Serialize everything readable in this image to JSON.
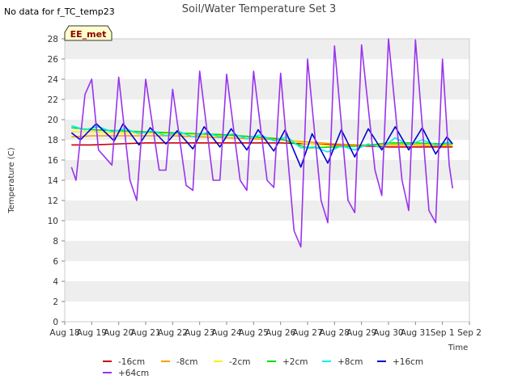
{
  "header": {
    "no_data_text": "No data for f_TC_temp23",
    "badge_text": "EE_met"
  },
  "colors": {
    "band": "#eeeeee",
    "badge_fill": "#ffffcc",
    "badge_text": "#8b0000"
  },
  "chart_data": {
    "type": "line",
    "title": "Soil/Water Temperature Set 3",
    "xlabel": "Time",
    "ylabel": "Temperature (C)",
    "ylim": [
      0,
      28
    ],
    "y_ticks": [
      0,
      2,
      4,
      6,
      8,
      10,
      12,
      14,
      16,
      18,
      20,
      22,
      24,
      26,
      28
    ],
    "x_ticks": [
      "Aug 18",
      "Aug 19",
      "Aug 20",
      "Aug 21",
      "Aug 22",
      "Aug 23",
      "Aug 24",
      "Aug 25",
      "Aug 26",
      "Aug 27",
      "Aug 28",
      "Aug 29",
      "Aug 30",
      "Aug 31",
      "Sep 1",
      "Sep 2"
    ],
    "xlim": [
      "Aug 18",
      "Sep 2"
    ],
    "grid": "horizontal bands",
    "legend_position": "bottom",
    "series": [
      {
        "name": "-16cm",
        "color": "#cc0000",
        "points": [
          [
            "Aug 18 06:00",
            17.5
          ],
          [
            "Aug 19 00:00",
            17.5
          ],
          [
            "Aug 20 00:00",
            17.6
          ],
          [
            "Aug 21 00:00",
            17.7
          ],
          [
            "Aug 22 00:00",
            17.7
          ],
          [
            "Aug 23 00:00",
            17.7
          ],
          [
            "Aug 24 00:00",
            17.7
          ],
          [
            "Aug 25 00:00",
            17.7
          ],
          [
            "Aug 26 00:00",
            17.7
          ],
          [
            "Aug 27 00:00",
            17.6
          ],
          [
            "Aug 28 00:00",
            17.5
          ],
          [
            "Aug 29 00:00",
            17.4
          ],
          [
            "Aug 30 00:00",
            17.3
          ],
          [
            "Aug 31 00:00",
            17.3
          ],
          [
            "Sep 1 00:00",
            17.3
          ],
          [
            "Sep 1 09:00",
            17.3
          ]
        ]
      },
      {
        "name": "-8cm",
        "color": "#ff9900",
        "points": [
          [
            "Aug 18 06:00",
            18.3
          ],
          [
            "Aug 19 00:00",
            18.4
          ],
          [
            "Aug 20 00:00",
            18.4
          ],
          [
            "Aug 21 00:00",
            18.4
          ],
          [
            "Aug 22 00:00",
            18.4
          ],
          [
            "Aug 23 00:00",
            18.3
          ],
          [
            "Aug 24 00:00",
            18.2
          ],
          [
            "Aug 25 00:00",
            18.1
          ],
          [
            "Aug 26 00:00",
            18.0
          ],
          [
            "Aug 27 00:00",
            17.8
          ],
          [
            "Aug 28 00:00",
            17.6
          ],
          [
            "Aug 29 00:00",
            17.5
          ],
          [
            "Aug 30 00:00",
            17.5
          ],
          [
            "Aug 31 00:00",
            17.5
          ],
          [
            "Sep 1 00:00",
            17.4
          ],
          [
            "Sep 1 09:00",
            17.4
          ]
        ]
      },
      {
        "name": "-2cm",
        "color": "#ffee00",
        "points": [
          [
            "Aug 18 06:00",
            18.8
          ],
          [
            "Aug 19 00:00",
            18.8
          ],
          [
            "Aug 20 00:00",
            18.7
          ],
          [
            "Aug 21 00:00",
            18.7
          ],
          [
            "Aug 22 00:00",
            18.6
          ],
          [
            "Aug 23 00:00",
            18.5
          ],
          [
            "Aug 24 00:00",
            18.4
          ],
          [
            "Aug 25 00:00",
            18.3
          ],
          [
            "Aug 26 00:00",
            18.1
          ],
          [
            "Aug 27 00:00",
            17.6
          ],
          [
            "Aug 28 00:00",
            17.4
          ],
          [
            "Aug 29 00:00",
            17.4
          ],
          [
            "Aug 30 00:00",
            17.6
          ],
          [
            "Aug 31 00:00",
            17.6
          ],
          [
            "Sep 1 00:00",
            17.5
          ],
          [
            "Sep 1 09:00",
            17.5
          ]
        ]
      },
      {
        "name": "+2cm",
        "color": "#00dd00",
        "points": [
          [
            "Aug 18 06:00",
            19.2
          ],
          [
            "Aug 19 00:00",
            19.0
          ],
          [
            "Aug 20 00:00",
            18.9
          ],
          [
            "Aug 21 00:00",
            18.8
          ],
          [
            "Aug 22 00:00",
            18.7
          ],
          [
            "Aug 23 00:00",
            18.6
          ],
          [
            "Aug 24 00:00",
            18.5
          ],
          [
            "Aug 25 00:00",
            18.3
          ],
          [
            "Aug 26 00:00",
            18.1
          ],
          [
            "Aug 27 00:00",
            17.2
          ],
          [
            "Aug 28 00:00",
            17.3
          ],
          [
            "Aug 29 00:00",
            17.4
          ],
          [
            "Aug 30 00:00",
            17.7
          ],
          [
            "Aug 31 00:00",
            17.7
          ],
          [
            "Sep 1 00:00",
            17.6
          ],
          [
            "Sep 1 09:00",
            17.6
          ]
        ]
      },
      {
        "name": "+8cm",
        "color": "#00eeee",
        "points": [
          [
            "Aug 18 06:00",
            19.4
          ],
          [
            "Aug 18 18:00",
            19.0
          ],
          [
            "Aug 19 06:00",
            19.3
          ],
          [
            "Aug 19 18:00",
            18.8
          ],
          [
            "Aug 20 06:00",
            19.1
          ],
          [
            "Aug 20 18:00",
            18.6
          ],
          [
            "Aug 21 06:00",
            18.9
          ],
          [
            "Aug 21 18:00",
            18.4
          ],
          [
            "Aug 22 06:00",
            18.8
          ],
          [
            "Aug 22 18:00",
            18.3
          ],
          [
            "Aug 23 06:00",
            18.7
          ],
          [
            "Aug 23 18:00",
            18.3
          ],
          [
            "Aug 24 06:00",
            18.6
          ],
          [
            "Aug 24 18:00",
            18.1
          ],
          [
            "Aug 25 06:00",
            18.5
          ],
          [
            "Aug 25 18:00",
            17.9
          ],
          [
            "Aug 26 06:00",
            18.3
          ],
          [
            "Aug 26 18:00",
            17.2
          ],
          [
            "Aug 27 06:00",
            17.3
          ],
          [
            "Aug 27 18:00",
            16.8
          ],
          [
            "Aug 28 06:00",
            17.4
          ],
          [
            "Aug 28 18:00",
            17.0
          ],
          [
            "Aug 29 06:00",
            17.6
          ],
          [
            "Aug 29 18:00",
            17.2
          ],
          [
            "Aug 30 06:00",
            18.2
          ],
          [
            "Aug 30 18:00",
            17.5
          ],
          [
            "Aug 31 06:00",
            18.0
          ],
          [
            "Aug 31 18:00",
            17.5
          ],
          [
            "Sep 1 06:00",
            17.8
          ],
          [
            "Sep 1 09:00",
            17.6
          ]
        ]
      },
      {
        "name": "+16cm",
        "color": "#0000cc",
        "points": [
          [
            "Aug 18 06:00",
            18.7
          ],
          [
            "Aug 18 14:00",
            18.0
          ],
          [
            "Aug 19 04:00",
            19.6
          ],
          [
            "Aug 19 20:00",
            17.9
          ],
          [
            "Aug 20 04:00",
            19.6
          ],
          [
            "Aug 20 18:00",
            17.5
          ],
          [
            "Aug 21 04:00",
            19.2
          ],
          [
            "Aug 21 18:00",
            17.6
          ],
          [
            "Aug 22 04:00",
            18.9
          ],
          [
            "Aug 22 18:00",
            17.1
          ],
          [
            "Aug 23 04:00",
            19.3
          ],
          [
            "Aug 23 18:00",
            17.3
          ],
          [
            "Aug 24 04:00",
            19.1
          ],
          [
            "Aug 24 18:00",
            17.0
          ],
          [
            "Aug 25 04:00",
            19.0
          ],
          [
            "Aug 25 18:00",
            16.9
          ],
          [
            "Aug 26 04:00",
            19.0
          ],
          [
            "Aug 26 18:00",
            15.3
          ],
          [
            "Aug 27 04:00",
            18.6
          ],
          [
            "Aug 27 18:00",
            15.7
          ],
          [
            "Aug 28 06:00",
            19.0
          ],
          [
            "Aug 28 18:00",
            16.3
          ],
          [
            "Aug 29 06:00",
            19.1
          ],
          [
            "Aug 29 18:00",
            17.0
          ],
          [
            "Aug 30 06:00",
            19.3
          ],
          [
            "Aug 30 18:00",
            17.0
          ],
          [
            "Aug 31 06:00",
            19.2
          ],
          [
            "Aug 31 18:00",
            16.6
          ],
          [
            "Sep 1 04:00",
            18.3
          ],
          [
            "Sep 1 09:00",
            17.6
          ]
        ]
      },
      {
        "name": "+64cm",
        "color": "#9933ee",
        "points": [
          [
            "Aug 18 06:00",
            15.3
          ],
          [
            "Aug 18 10:00",
            14.0
          ],
          [
            "Aug 18 18:00",
            22.5
          ],
          [
            "Aug 19 00:00",
            24.0
          ],
          [
            "Aug 19 06:00",
            17.0
          ],
          [
            "Aug 19 18:00",
            15.5
          ],
          [
            "Aug 20 00:00",
            24.2
          ],
          [
            "Aug 20 10:00",
            14.0
          ],
          [
            "Aug 20 16:00",
            12.0
          ],
          [
            "Aug 21 00:00",
            24.0
          ],
          [
            "Aug 21 12:00",
            15.0
          ],
          [
            "Aug 21 18:00",
            15.0
          ],
          [
            "Aug 22 00:00",
            23.0
          ],
          [
            "Aug 22 12:00",
            13.5
          ],
          [
            "Aug 22 18:00",
            13.0
          ],
          [
            "Aug 23 00:00",
            24.8
          ],
          [
            "Aug 23 12:00",
            14.0
          ],
          [
            "Aug 23 18:00",
            14.0
          ],
          [
            "Aug 24 00:00",
            24.5
          ],
          [
            "Aug 24 12:00",
            14.0
          ],
          [
            "Aug 24 18:00",
            13.0
          ],
          [
            "Aug 25 00:00",
            24.8
          ],
          [
            "Aug 25 12:00",
            14.0
          ],
          [
            "Aug 25 18:00",
            13.3
          ],
          [
            "Aug 26 00:00",
            24.6
          ],
          [
            "Aug 26 12:00",
            9.0
          ],
          [
            "Aug 26 18:00",
            7.4
          ],
          [
            "Aug 27 00:00",
            26.0
          ],
          [
            "Aug 27 12:00",
            12.0
          ],
          [
            "Aug 27 18:00",
            9.8
          ],
          [
            "Aug 28 00:00",
            27.3
          ],
          [
            "Aug 28 12:00",
            12.0
          ],
          [
            "Aug 28 18:00",
            10.8
          ],
          [
            "Aug 29 00:00",
            27.4
          ],
          [
            "Aug 29 12:00",
            15.0
          ],
          [
            "Aug 29 18:00",
            12.5
          ],
          [
            "Aug 30 00:00",
            28.0
          ],
          [
            "Aug 30 12:00",
            14.0
          ],
          [
            "Aug 30 18:00",
            11.0
          ],
          [
            "Aug 31 00:00",
            27.9
          ],
          [
            "Aug 31 12:00",
            11.0
          ],
          [
            "Aug 31 18:00",
            9.8
          ],
          [
            "Sep 1 00:00",
            26.0
          ],
          [
            "Sep 1 06:00",
            15.5
          ],
          [
            "Sep 1 09:00",
            13.2
          ]
        ]
      }
    ]
  }
}
